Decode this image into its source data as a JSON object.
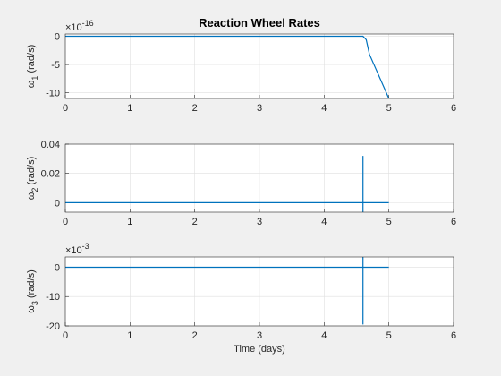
{
  "chart_data": [
    {
      "type": "line",
      "title": "Reaction Wheel Rates",
      "ylabel_symbol": "ω",
      "ylabel_sub": "1",
      "ylabel_unit": "(rad/s)",
      "exponent_base": "×10",
      "exponent_power": "-16",
      "xlabel": "",
      "xlim": [
        0,
        6
      ],
      "ylim": [
        -11,
        0.4
      ],
      "xticks": [
        "0",
        "1",
        "2",
        "3",
        "4",
        "5",
        "6"
      ],
      "yticks": [
        "0",
        "-5",
        "-10"
      ],
      "ytick_values": [
        0,
        -5,
        -10
      ],
      "grid": true,
      "line_color": "#0072bd",
      "x": [
        0,
        4.6,
        4.65,
        4.7,
        5.0
      ],
      "y": [
        0,
        0,
        -0.6,
        -3.2,
        -11
      ]
    },
    {
      "type": "line",
      "title": "",
      "ylabel_symbol": "ω",
      "ylabel_sub": "2",
      "ylabel_unit": "(rad/s)",
      "exponent_base": "",
      "exponent_power": "",
      "xlabel": "",
      "xlim": [
        0,
        6
      ],
      "ylim": [
        -0.0065,
        0.04
      ],
      "xticks": [
        "0",
        "1",
        "2",
        "3",
        "4",
        "5",
        "6"
      ],
      "yticks": [
        "0.04",
        "0.02",
        "0"
      ],
      "ytick_values": [
        0.04,
        0.02,
        0
      ],
      "grid": true,
      "line_color": "#0072bd",
      "x": [
        0,
        4.6,
        4.6,
        4.6,
        4.6,
        5.0
      ],
      "y": [
        0,
        0,
        0.032,
        -0.0065,
        0,
        0
      ]
    },
    {
      "type": "line",
      "title": "",
      "ylabel_symbol": "ω",
      "ylabel_sub": "3",
      "ylabel_unit": "(rad/s)",
      "exponent_base": "×10",
      "exponent_power": "-3",
      "xlabel": "Time (days)",
      "xlim": [
        0,
        6
      ],
      "ylim": [
        -20,
        3.5
      ],
      "xticks": [
        "0",
        "1",
        "2",
        "3",
        "4",
        "5",
        "6"
      ],
      "yticks": [
        "0",
        "-10",
        "-20"
      ],
      "ytick_values": [
        0,
        -10,
        -20
      ],
      "grid": true,
      "line_color": "#0072bd",
      "x": [
        0,
        4.6,
        4.6,
        4.6,
        4.6,
        5.0
      ],
      "y": [
        0,
        0,
        3.5,
        -19.5,
        0,
        0
      ]
    }
  ]
}
